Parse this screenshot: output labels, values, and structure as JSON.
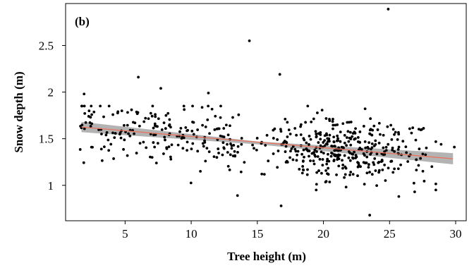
{
  "chart_data": {
    "type": "scatter",
    "panel_label": "(b)",
    "xlabel": "Tree height (m)",
    "ylabel": "Snow depth (m)",
    "xlim": [
      0.5,
      30.8
    ],
    "ylim": [
      0.62,
      2.95
    ],
    "xticks": [
      5,
      10,
      15,
      20,
      25,
      30
    ],
    "yticks": [
      1,
      1.5,
      2,
      2.5
    ],
    "xtick_labels": [
      "5",
      "10",
      "15",
      "20",
      "25",
      "30"
    ],
    "ytick_labels": [
      "1",
      "1.5",
      "2",
      "2.5"
    ],
    "grid": false,
    "legend": "none",
    "colors": {
      "points": "#000000",
      "fit_line": "#e8735f",
      "confidence_band": "#a6a6a6"
    },
    "fit_line": {
      "x": [
        1.7,
        29.8
      ],
      "y": [
        1.625,
        1.285
      ]
    },
    "confidence_band": {
      "x": [
        1.7,
        15,
        29.8
      ],
      "lower": [
        1.57,
        1.44,
        1.225
      ],
      "upper": [
        1.68,
        1.47,
        1.345
      ]
    },
    "outliers": [
      {
        "x": 14.4,
        "y": 2.55
      },
      {
        "x": 24.9,
        "y": 2.89
      },
      {
        "x": 16.7,
        "y": 2.19
      },
      {
        "x": 13.5,
        "y": 0.89
      },
      {
        "x": 16.8,
        "y": 0.78
      },
      {
        "x": 23.5,
        "y": 0.68
      },
      {
        "x": 6.0,
        "y": 2.16
      },
      {
        "x": 7.7,
        "y": 2.04
      },
      {
        "x": 11.3,
        "y": 1.99
      },
      {
        "x": 1.9,
        "y": 1.98
      },
      {
        "x": 26.9,
        "y": 0.93
      },
      {
        "x": 25.7,
        "y": 0.88
      },
      {
        "x": 28.9,
        "y": 1.44
      },
      {
        "x": 29.9,
        "y": 1.41
      }
    ],
    "scatter_generator": {
      "n": 580,
      "seed": 7,
      "x_min": 1.6,
      "x_max": 28.5,
      "x_center": 21.5,
      "slope": -0.0121,
      "intercept": 1.645,
      "noise_sd": 0.17
    }
  }
}
